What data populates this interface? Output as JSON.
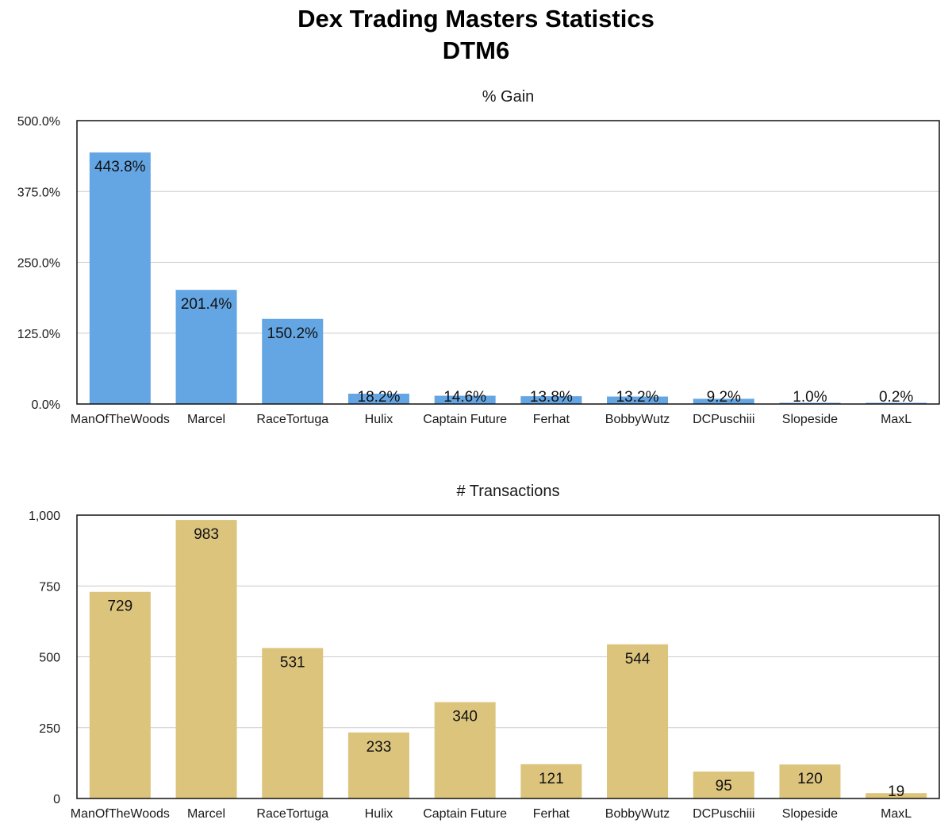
{
  "title": "Dex Trading Masters Statistics",
  "subtitle": "DTM6",
  "chart_data": [
    {
      "type": "bar",
      "title": "% Gain",
      "categories": [
        "ManOfTheWoods",
        "Marcel",
        "RaceTortuga",
        "Hulix",
        "Captain Future",
        "Ferhat",
        "BobbyWutz",
        "DCPuschiii",
        "Slopeside",
        "MaxL"
      ],
      "values": [
        443.8,
        201.4,
        150.2,
        18.2,
        14.6,
        13.8,
        13.2,
        9.2,
        1.0,
        0.2
      ],
      "value_labels": [
        "443.8%",
        "201.4%",
        "150.2%",
        "18.2%",
        "14.6%",
        "13.8%",
        "13.2%",
        "9.2%",
        "1.0%",
        "0.2%"
      ],
      "yticks": [
        0,
        125,
        250,
        375,
        500
      ],
      "ytick_labels": [
        "0.0%",
        "125.0%",
        "250.0%",
        "375.0%",
        "500.0%"
      ],
      "ylim": [
        0,
        500
      ],
      "xlabel": "",
      "ylabel": "",
      "grid": true,
      "color": "#64a5e3"
    },
    {
      "type": "bar",
      "title": "# Transactions",
      "categories": [
        "ManOfTheWoods",
        "Marcel",
        "RaceTortuga",
        "Hulix",
        "Captain Future",
        "Ferhat",
        "BobbyWutz",
        "DCPuschiii",
        "Slopeside",
        "MaxL"
      ],
      "values": [
        729,
        983,
        531,
        233,
        340,
        121,
        544,
        95,
        120,
        19
      ],
      "value_labels": [
        "729",
        "983",
        "531",
        "233",
        "340",
        "121",
        "544",
        "95",
        "120",
        "19"
      ],
      "yticks": [
        0,
        250,
        500,
        750,
        1000
      ],
      "ytick_labels": [
        "0",
        "250",
        "500",
        "750",
        "1,000"
      ],
      "ylim": [
        0,
        1000
      ],
      "xlabel": "",
      "ylabel": "",
      "grid": true,
      "color": "#dcc47d"
    }
  ]
}
